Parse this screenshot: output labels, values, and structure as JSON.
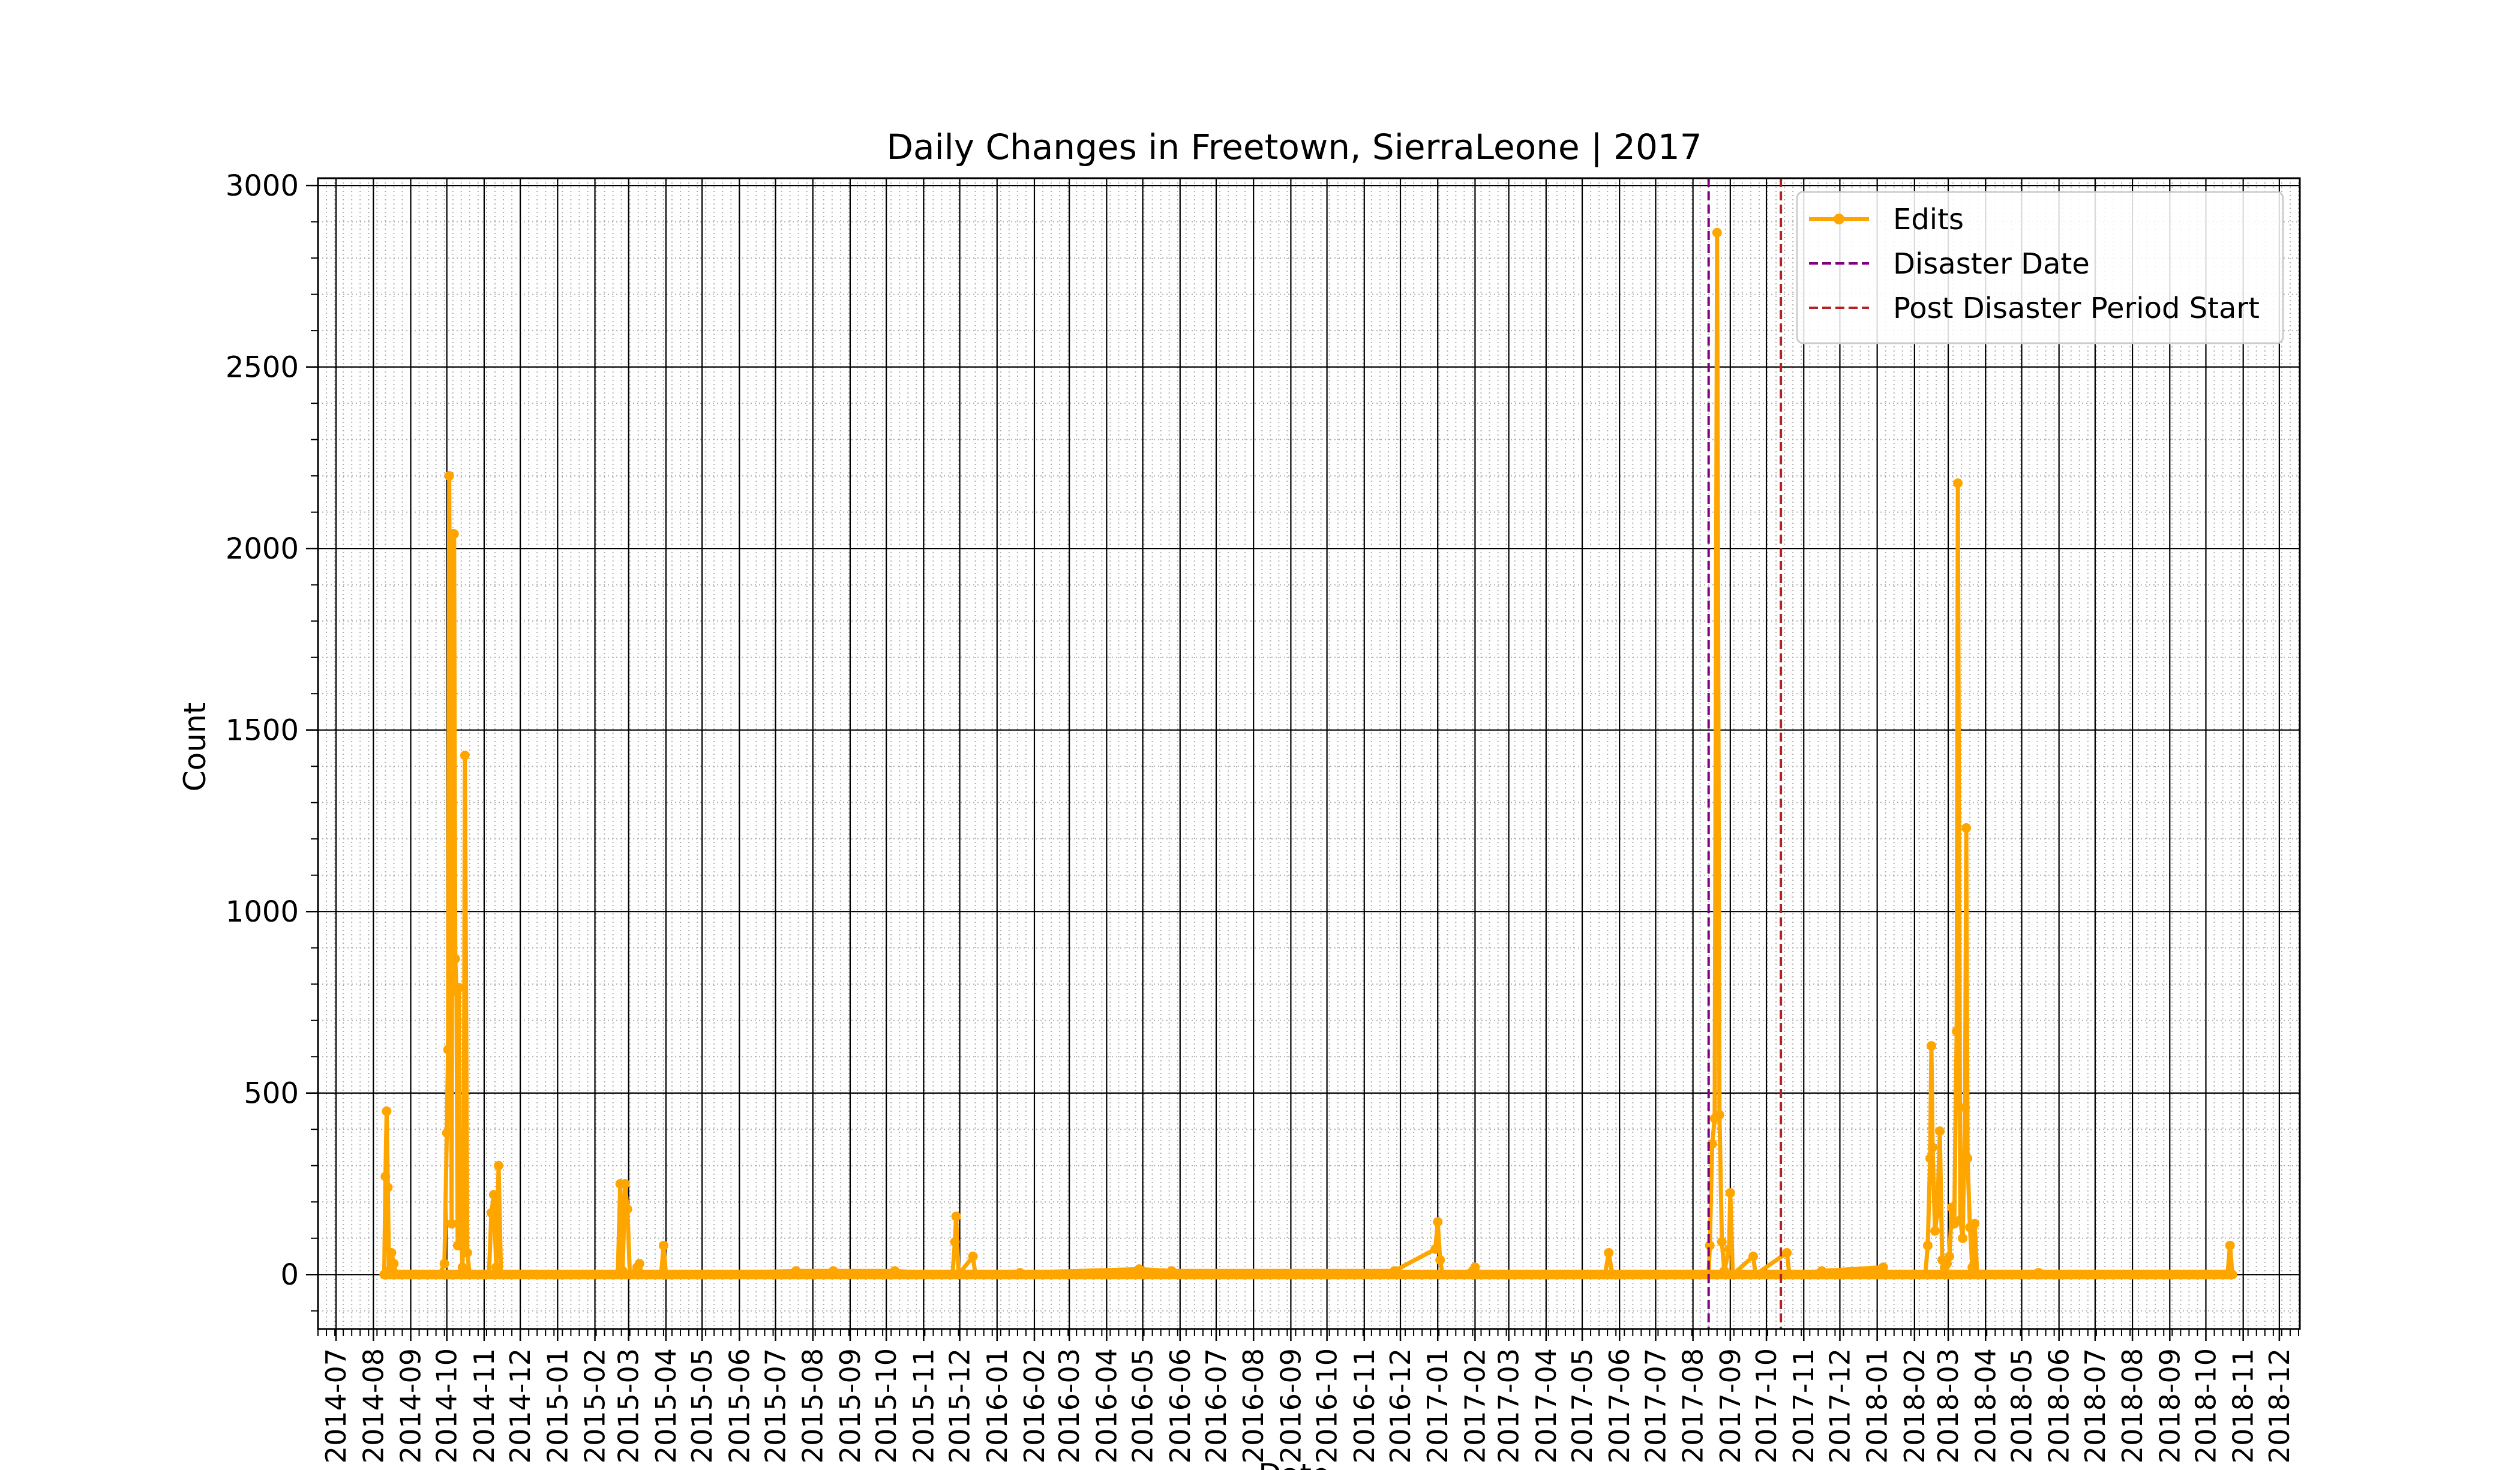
{
  "chart_data": {
    "type": "line",
    "title": "Daily Changes in Freetown, SierraLeone | 2017",
    "xlabel": "Date",
    "ylabel": "Count",
    "x_range": [
      "2014-06-16",
      "2018-12-18"
    ],
    "ylim": [
      -150,
      3020
    ],
    "grid": "major and minor",
    "legend_position": "upper right",
    "y_ticks": [
      0,
      500,
      1000,
      1500,
      2000,
      2500,
      3000
    ],
    "x_ticks": [
      "2014-07",
      "2014-08",
      "2014-09",
      "2014-10",
      "2014-11",
      "2014-12",
      "2015-01",
      "2015-02",
      "2015-03",
      "2015-04",
      "2015-05",
      "2015-06",
      "2015-07",
      "2015-08",
      "2015-09",
      "2015-10",
      "2015-11",
      "2015-12",
      "2016-01",
      "2016-02",
      "2016-03",
      "2016-04",
      "2016-05",
      "2016-06",
      "2016-07",
      "2016-08",
      "2016-09",
      "2016-10",
      "2016-11",
      "2016-12",
      "2017-01",
      "2017-02",
      "2017-03",
      "2017-04",
      "2017-05",
      "2017-06",
      "2017-07",
      "2017-08",
      "2017-09",
      "2017-10",
      "2017-11",
      "2017-12",
      "2018-01",
      "2018-02",
      "2018-03",
      "2018-04",
      "2018-05",
      "2018-06",
      "2018-07",
      "2018-08",
      "2018-09",
      "2018-10",
      "2018-11",
      "2018-12"
    ],
    "series": [
      {
        "name": "Edits",
        "color": "#FFA500",
        "marker": "circle",
        "points": [
          [
            "2014-08-10",
            0
          ],
          [
            "2014-08-11",
            270
          ],
          [
            "2014-08-12",
            450
          ],
          [
            "2014-08-13",
            240
          ],
          [
            "2014-08-14",
            10
          ],
          [
            "2014-08-16",
            60
          ],
          [
            "2014-08-18",
            30
          ],
          [
            "2014-08-20",
            0
          ],
          [
            "2014-09-25",
            0
          ],
          [
            "2014-09-29",
            30
          ],
          [
            "2014-10-01",
            390
          ],
          [
            "2014-10-02",
            620
          ],
          [
            "2014-10-03",
            2200
          ],
          [
            "2014-10-04",
            1180
          ],
          [
            "2014-10-05",
            140
          ],
          [
            "2014-10-06",
            2040
          ],
          [
            "2014-10-07",
            2040
          ],
          [
            "2014-10-08",
            870
          ],
          [
            "2014-10-09",
            780
          ],
          [
            "2014-10-10",
            80
          ],
          [
            "2014-10-11",
            790
          ],
          [
            "2014-10-12",
            180
          ],
          [
            "2014-10-14",
            20
          ],
          [
            "2014-10-15",
            160
          ],
          [
            "2014-10-16",
            1430
          ],
          [
            "2014-10-18",
            60
          ],
          [
            "2014-10-20",
            0
          ],
          [
            "2014-11-05",
            0
          ],
          [
            "2014-11-07",
            170
          ],
          [
            "2014-11-09",
            220
          ],
          [
            "2014-11-11",
            20
          ],
          [
            "2014-11-13",
            300
          ],
          [
            "2014-11-15",
            0
          ],
          [
            "2015-02-20",
            0
          ],
          [
            "2015-02-22",
            250
          ],
          [
            "2015-02-24",
            10
          ],
          [
            "2015-02-26",
            250
          ],
          [
            "2015-02-28",
            180
          ],
          [
            "2015-03-02",
            0
          ],
          [
            "2015-03-08",
            20
          ],
          [
            "2015-03-10",
            30
          ],
          [
            "2015-03-12",
            0
          ],
          [
            "2015-03-28",
            0
          ],
          [
            "2015-03-30",
            80
          ],
          [
            "2015-04-01",
            0
          ],
          [
            "2015-07-18",
            10
          ],
          [
            "2015-08-18",
            10
          ],
          [
            "2015-10-08",
            10
          ],
          [
            "2015-11-25",
            0
          ],
          [
            "2015-11-27",
            90
          ],
          [
            "2015-11-28",
            160
          ],
          [
            "2015-11-30",
            0
          ],
          [
            "2015-12-12",
            50
          ],
          [
            "2015-12-14",
            0
          ],
          [
            "2016-01-20",
            5
          ],
          [
            "2016-04-28",
            15
          ],
          [
            "2016-05-25",
            10
          ],
          [
            "2016-11-26",
            10
          ],
          [
            "2016-12-30",
            70
          ],
          [
            "2017-01-01",
            145
          ],
          [
            "2017-01-03",
            40
          ],
          [
            "2017-01-05",
            0
          ],
          [
            "2017-01-30",
            10
          ],
          [
            "2017-02-01",
            20
          ],
          [
            "2017-02-03",
            0
          ],
          [
            "2017-05-20",
            0
          ],
          [
            "2017-05-23",
            60
          ],
          [
            "2017-05-26",
            0
          ],
          [
            "2017-08-14",
            0
          ],
          [
            "2017-08-15",
            80
          ],
          [
            "2017-08-17",
            360
          ],
          [
            "2017-08-19",
            430
          ],
          [
            "2017-08-21",
            2870
          ],
          [
            "2017-08-23",
            440
          ],
          [
            "2017-08-25",
            90
          ],
          [
            "2017-08-27",
            10
          ],
          [
            "2017-08-31",
            70
          ],
          [
            "2017-09-01",
            225
          ],
          [
            "2017-09-03",
            0
          ],
          [
            "2017-09-20",
            50
          ],
          [
            "2017-09-22",
            0
          ],
          [
            "2017-10-18",
            60
          ],
          [
            "2017-10-20",
            0
          ],
          [
            "2017-11-16",
            10
          ],
          [
            "2018-01-06",
            20
          ],
          [
            "2018-01-08",
            0
          ],
          [
            "2018-02-10",
            0
          ],
          [
            "2018-02-12",
            80
          ],
          [
            "2018-02-14",
            320
          ],
          [
            "2018-02-15",
            630
          ],
          [
            "2018-02-16",
            350
          ],
          [
            "2018-02-18",
            120
          ],
          [
            "2018-02-20",
            170
          ],
          [
            "2018-02-22",
            395
          ],
          [
            "2018-02-24",
            40
          ],
          [
            "2018-02-26",
            20
          ],
          [
            "2018-02-28",
            30
          ],
          [
            "2018-03-02",
            50
          ],
          [
            "2018-03-04",
            185
          ],
          [
            "2018-03-06",
            140
          ],
          [
            "2018-03-08",
            670
          ],
          [
            "2018-03-09",
            2180
          ],
          [
            "2018-03-11",
            150
          ],
          [
            "2018-03-13",
            100
          ],
          [
            "2018-03-15",
            460
          ],
          [
            "2018-03-16",
            1230
          ],
          [
            "2018-03-17",
            320
          ],
          [
            "2018-03-19",
            130
          ],
          [
            "2018-03-21",
            20
          ],
          [
            "2018-03-23",
            140
          ],
          [
            "2018-03-25",
            0
          ],
          [
            "2018-05-15",
            5
          ],
          [
            "2018-10-19",
            0
          ],
          [
            "2018-10-21",
            80
          ],
          [
            "2018-10-23",
            0
          ]
        ],
        "baseline_range": [
          "2014-08-10",
          "2018-10-23"
        ]
      }
    ],
    "vlines": [
      {
        "name": "Disaster Date",
        "date": "2017-08-14",
        "color": "#800080",
        "style": "dashed"
      },
      {
        "name": "Post Disaster Period Start",
        "date": "2017-10-13",
        "color": "#B22222",
        "style": "dashed"
      }
    ],
    "legend": [
      {
        "label": "Edits",
        "color": "#FFA500",
        "style": "line-marker"
      },
      {
        "label": "Disaster Date",
        "color": "#800080",
        "style": "dashed"
      },
      {
        "label": "Post Disaster Period Start",
        "color": "#B22222",
        "style": "dashed"
      }
    ]
  }
}
